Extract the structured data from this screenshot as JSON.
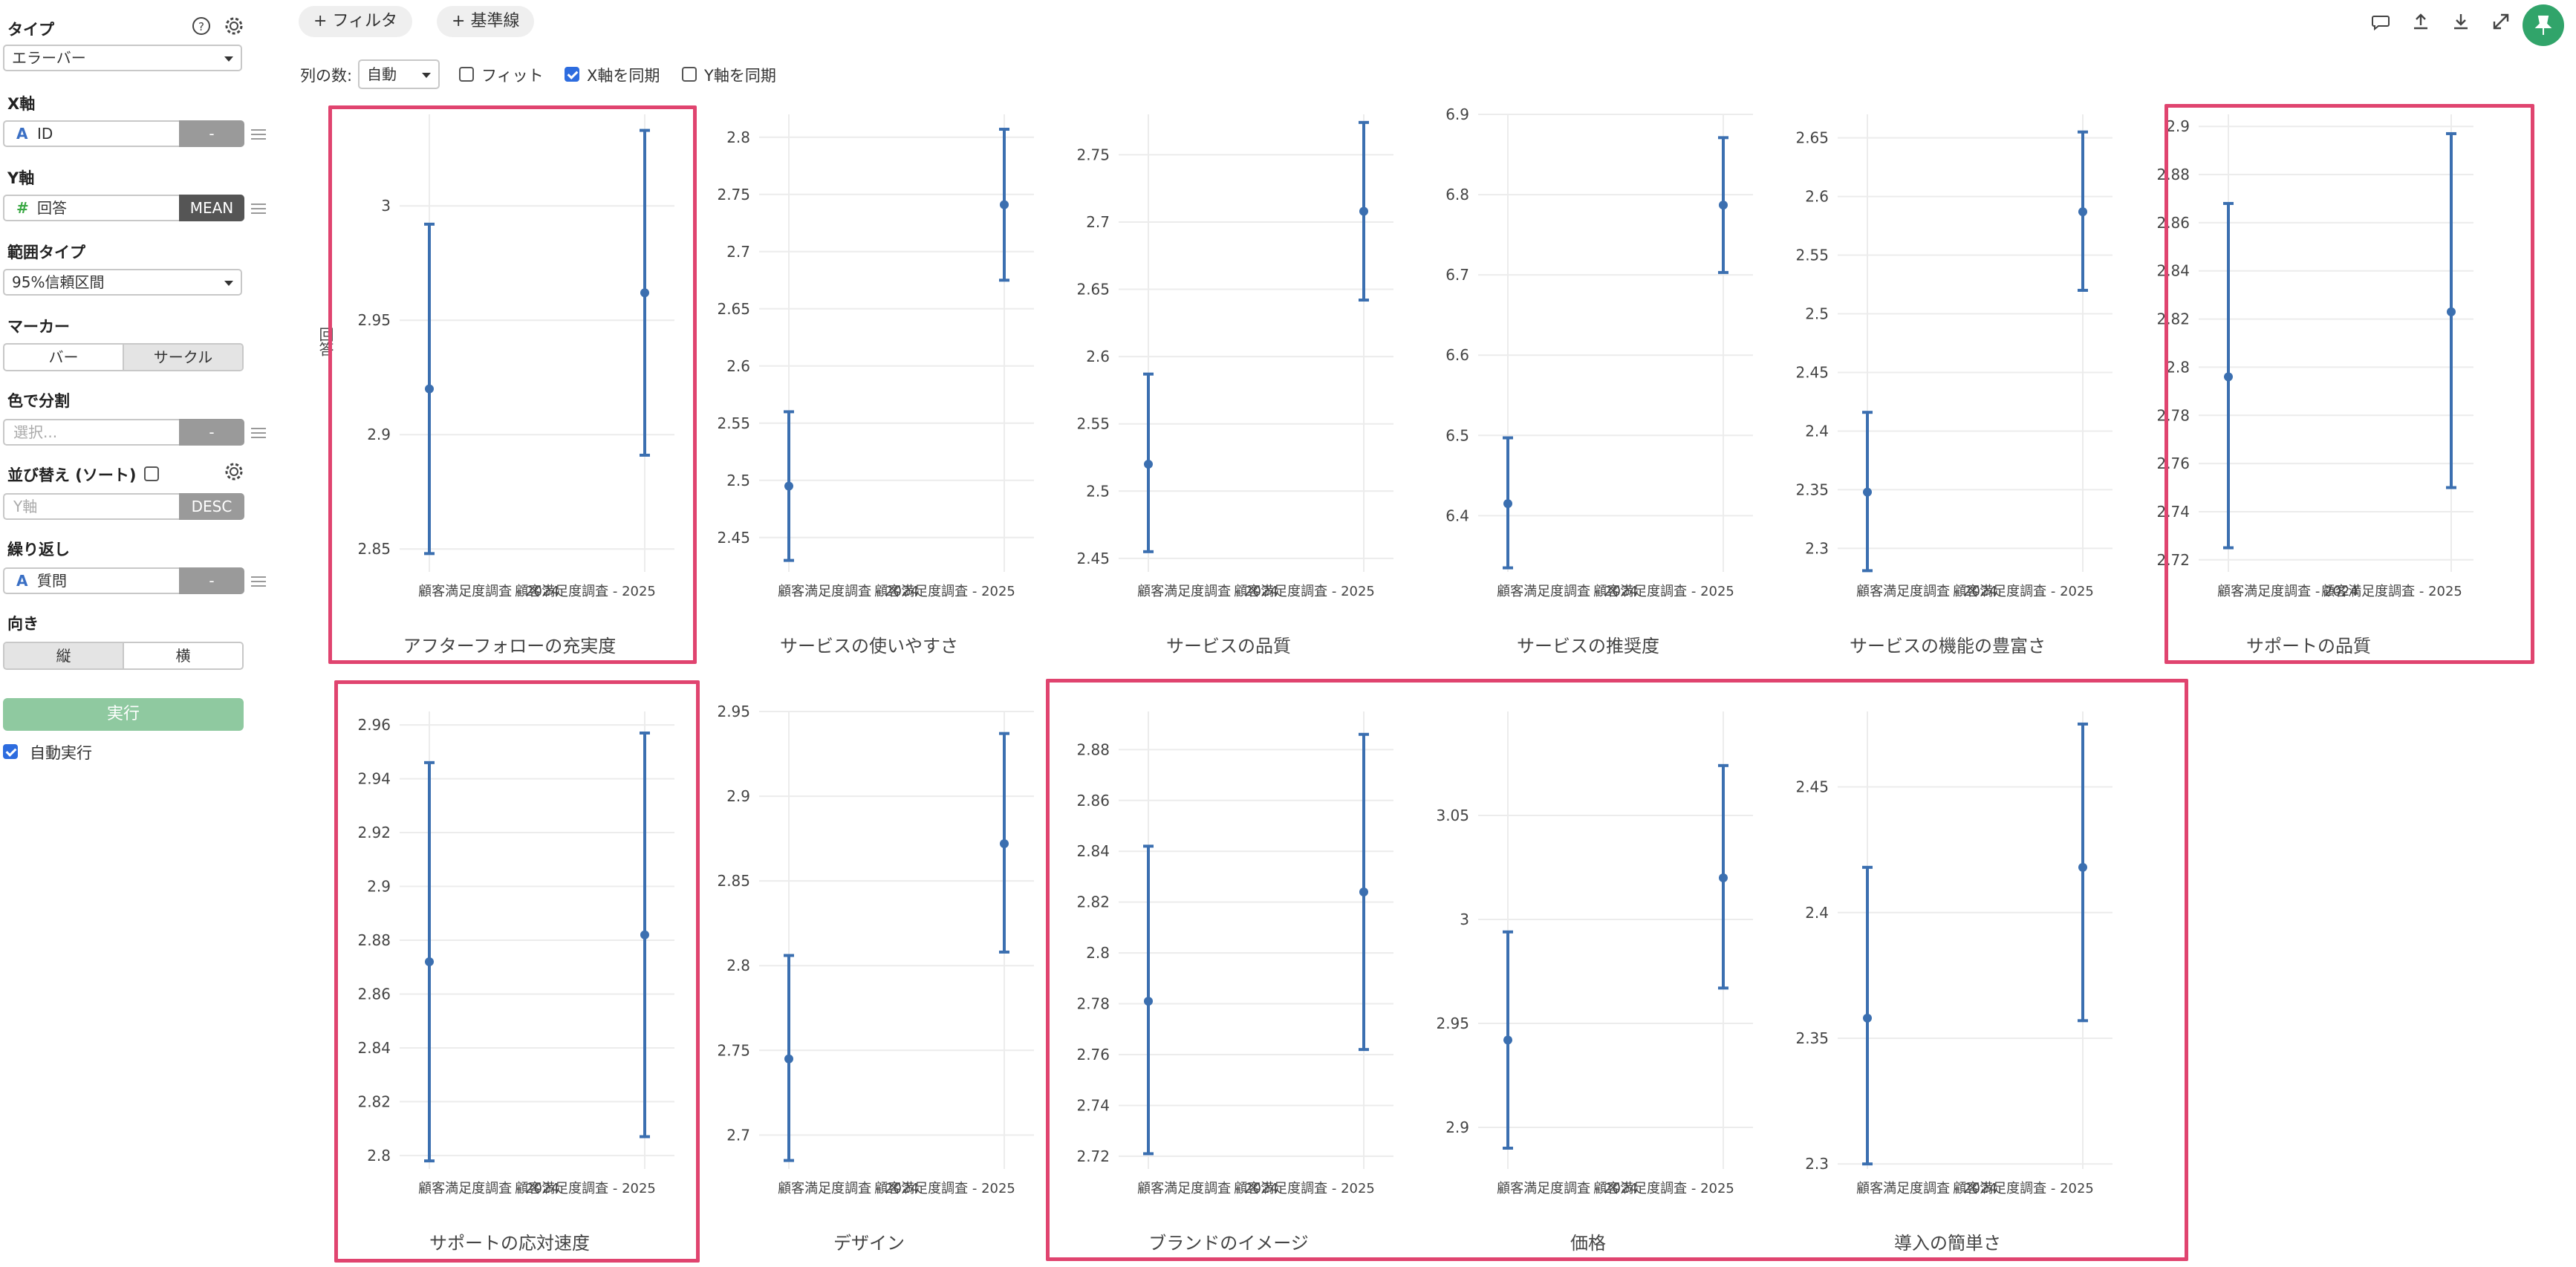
{
  "sidebar": {
    "type_label": "タイプ",
    "type_value": "エラーバー",
    "x_label": "X軸",
    "x_value": "ID",
    "x_agg": "-",
    "y_label": "Y軸",
    "y_value": "回答",
    "y_agg": "MEAN",
    "range_label": "範囲タイプ",
    "range_value": "95%信頼区間",
    "marker_label": "マーカー",
    "marker_bar": "バー",
    "marker_circle": "サークル",
    "color_label": "色で分割",
    "color_placeholder": "選択...",
    "color_agg": "-",
    "sort_label": "並び替え (ソート)",
    "sort_placeholder": "Y軸",
    "sort_order": "DESC",
    "repeat_label": "繰り返し",
    "repeat_value": "質問",
    "repeat_agg": "-",
    "orient_label": "向き",
    "orient_vertical": "縦",
    "orient_horizontal": "横",
    "run_label": "実行",
    "auto_run_label": "自動実行",
    "icon_type_str": "A",
    "icon_type_num": "#"
  },
  "toolbar": {
    "filter_label": "フィルタ",
    "baseline_label": "基準線",
    "plus": "+",
    "columns_label": "列の数:",
    "columns_value": "自動",
    "fit_label": "フィット",
    "sync_x_label": "X軸を同期",
    "sync_y_label": "Y軸を同期"
  },
  "y_axis_title_fragment": "回答",
  "colors": {
    "series": "#3b6fb0",
    "highlight": "#e0446f",
    "run": "#8fc9a0",
    "pin": "#31a46a"
  },
  "chart_data": {
    "type": "errorbar",
    "categories": [
      "顧客満足度調査 - 2024",
      "顧客満足度調査 - 2025"
    ],
    "panels": [
      {
        "title": "アフターフォローの充実度",
        "ticks": [
          2.85,
          2.9,
          2.95,
          3
        ],
        "ylim": [
          2.84,
          3.04
        ],
        "points": [
          {
            "mean": 2.92,
            "lo": 2.848,
            "hi": 2.992
          },
          {
            "mean": 2.962,
            "lo": 2.891,
            "hi": 3.033
          }
        ],
        "tick_font": "large"
      },
      {
        "title": "サービスの使いやすさ",
        "ticks": [
          2.45,
          2.5,
          2.55,
          2.6,
          2.65,
          2.7,
          2.75,
          2.8
        ],
        "ylim": [
          2.42,
          2.82
        ],
        "points": [
          {
            "mean": 2.495,
            "lo": 2.43,
            "hi": 2.56
          },
          {
            "mean": 2.741,
            "lo": 2.675,
            "hi": 2.807
          }
        ]
      },
      {
        "title": "サービスの品質",
        "ticks": [
          2.45,
          2.5,
          2.55,
          2.6,
          2.65,
          2.7,
          2.75
        ],
        "ylim": [
          2.44,
          2.78
        ],
        "points": [
          {
            "mean": 2.52,
            "lo": 2.455,
            "hi": 2.587
          },
          {
            "mean": 2.708,
            "lo": 2.642,
            "hi": 2.774
          }
        ]
      },
      {
        "title": "サービスの推奨度",
        "ticks": [
          6.4,
          6.5,
          6.6,
          6.7,
          6.8,
          6.9
        ],
        "ylim": [
          6.33,
          6.9
        ],
        "points": [
          {
            "mean": 6.415,
            "lo": 6.335,
            "hi": 6.497
          },
          {
            "mean": 6.787,
            "lo": 6.703,
            "hi": 6.871
          }
        ]
      },
      {
        "title": "サービスの機能の豊富さ",
        "ticks": [
          2.3,
          2.35,
          2.4,
          2.45,
          2.5,
          2.55,
          2.6,
          2.65
        ],
        "ylim": [
          2.28,
          2.67
        ],
        "points": [
          {
            "mean": 2.348,
            "lo": 2.281,
            "hi": 2.416
          },
          {
            "mean": 2.587,
            "lo": 2.52,
            "hi": 2.655
          }
        ]
      },
      {
        "title": "サポートの品質",
        "ticks": [
          2.72,
          2.74,
          2.76,
          2.78,
          2.8,
          2.82,
          2.84,
          2.86,
          2.88,
          2.9
        ],
        "ylim": [
          2.715,
          2.905
        ],
        "points": [
          {
            "mean": 2.796,
            "lo": 2.725,
            "hi": 2.868
          },
          {
            "mean": 2.823,
            "lo": 2.75,
            "hi": 2.897
          }
        ],
        "crop_right": true
      },
      {
        "title": "サポートの応対速度",
        "ticks": [
          2.8,
          2.82,
          2.84,
          2.86,
          2.88,
          2.9,
          2.92,
          2.94,
          2.96
        ],
        "ylim": [
          2.795,
          2.965
        ],
        "points": [
          {
            "mean": 2.872,
            "lo": 2.798,
            "hi": 2.946
          },
          {
            "mean": 2.882,
            "lo": 2.807,
            "hi": 2.957
          }
        ]
      },
      {
        "title": "デザイン",
        "ticks": [
          2.7,
          2.75,
          2.8,
          2.85,
          2.9,
          2.95
        ],
        "ylim": [
          2.68,
          2.95
        ],
        "points": [
          {
            "mean": 2.745,
            "lo": 2.685,
            "hi": 2.806
          },
          {
            "mean": 2.872,
            "lo": 2.808,
            "hi": 2.937
          }
        ]
      },
      {
        "title": "ブランドのイメージ",
        "ticks": [
          2.72,
          2.74,
          2.76,
          2.78,
          2.8,
          2.82,
          2.84,
          2.86,
          2.88
        ],
        "ylim": [
          2.715,
          2.895
        ],
        "points": [
          {
            "mean": 2.781,
            "lo": 2.721,
            "hi": 2.842
          },
          {
            "mean": 2.824,
            "lo": 2.762,
            "hi": 2.886
          }
        ]
      },
      {
        "title": "価格",
        "ticks": [
          2.9,
          2.95,
          3,
          3.05
        ],
        "ylim": [
          2.88,
          3.1
        ],
        "points": [
          {
            "mean": 2.942,
            "lo": 2.89,
            "hi": 2.994
          },
          {
            "mean": 3.02,
            "lo": 2.967,
            "hi": 3.074
          }
        ],
        "show_left_cat_only": true
      },
      {
        "title": "導入の簡単さ",
        "ticks": [
          2.3,
          2.35,
          2.4,
          2.45
        ],
        "ylim": [
          2.298,
          2.48
        ],
        "points": [
          {
            "mean": 2.358,
            "lo": 2.3,
            "hi": 2.418
          },
          {
            "mean": 2.418,
            "lo": 2.357,
            "hi": 2.475
          }
        ],
        "full_labels": true
      }
    ]
  }
}
